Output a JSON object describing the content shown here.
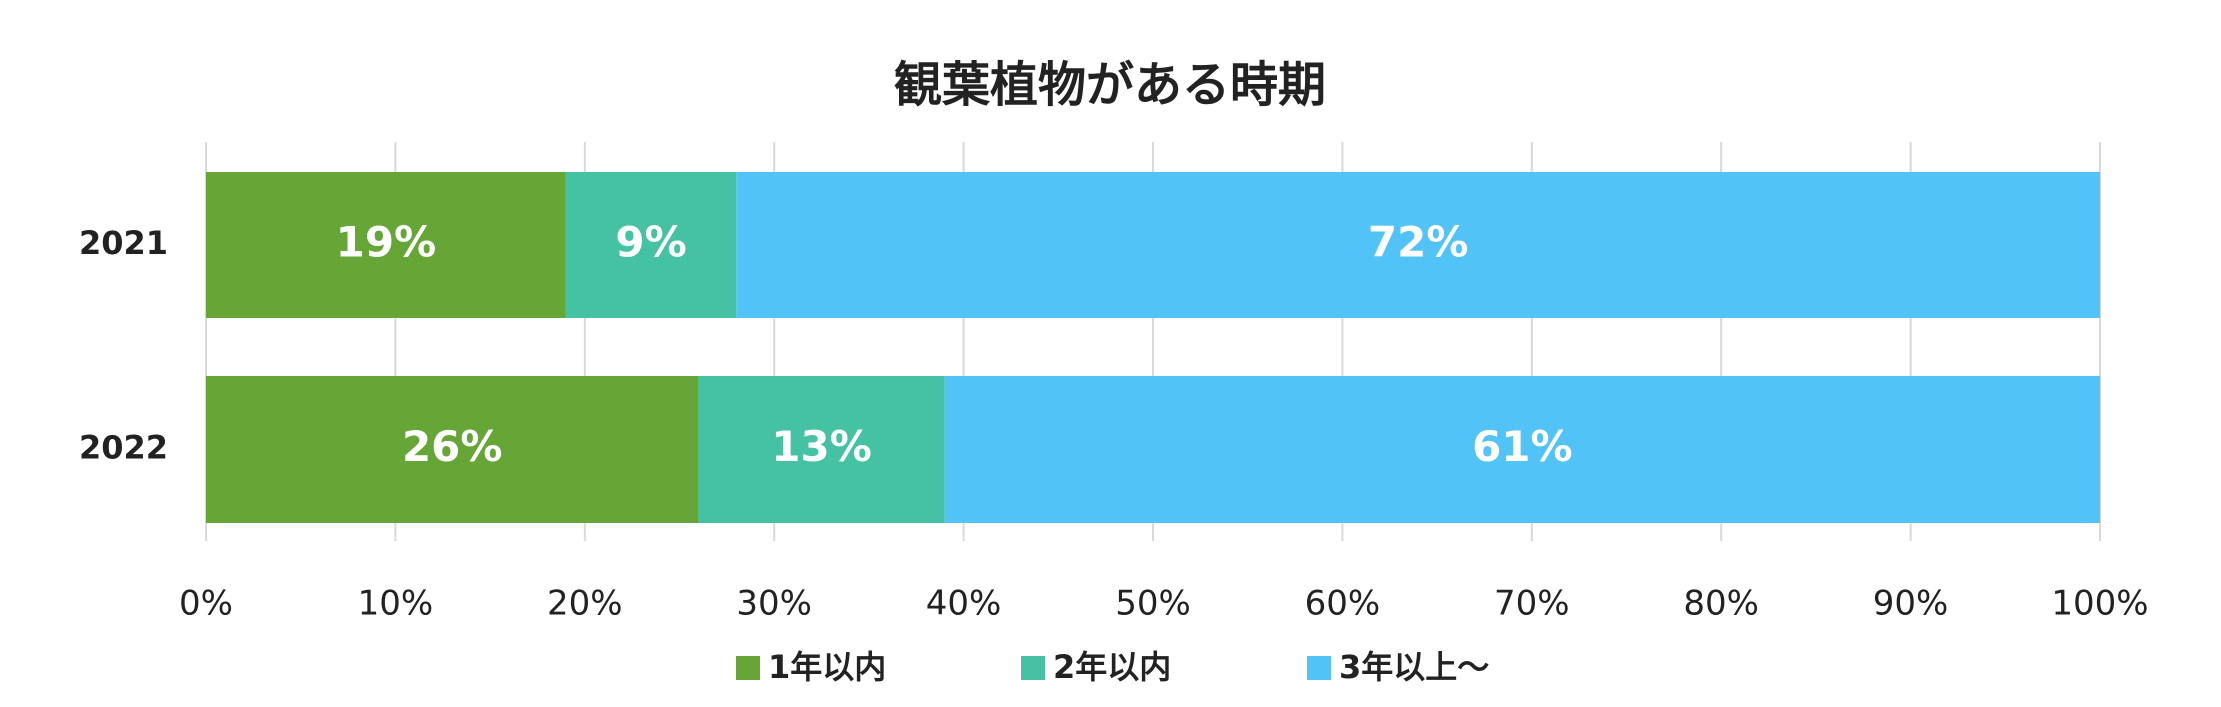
{
  "chart_data": {
    "type": "stacked-bar-horizontal",
    "title": "観葉植物がある時期",
    "categories": [
      "2021",
      "2022"
    ],
    "series": [
      {
        "name": "1年以内",
        "color": "#65a637",
        "values": [
          19,
          26
        ],
        "value_labels": [
          "19%",
          "26%"
        ]
      },
      {
        "name": "2年以内",
        "color": "#45c2a4",
        "values": [
          9,
          13
        ],
        "value_labels": [
          "9%",
          "13%"
        ]
      },
      {
        "name": "3年以上～",
        "color": "#52c3f7",
        "values": [
          72,
          61
        ],
        "value_labels": [
          "72%",
          "61%"
        ]
      }
    ],
    "xlim": [
      0,
      100
    ],
    "xticks": [
      {
        "value": 0,
        "label": "0%"
      },
      {
        "value": 10,
        "label": "10%"
      },
      {
        "value": 20,
        "label": "20%"
      },
      {
        "value": 30,
        "label": "30%"
      },
      {
        "value": 40,
        "label": "40%"
      },
      {
        "value": 50,
        "label": "50%"
      },
      {
        "value": 60,
        "label": "60%"
      },
      {
        "value": 70,
        "label": "70%"
      },
      {
        "value": 80,
        "label": "80%"
      },
      {
        "value": 90,
        "label": "90%"
      },
      {
        "value": 100,
        "label": "100%"
      }
    ],
    "grid": true,
    "legend": "bottom"
  }
}
